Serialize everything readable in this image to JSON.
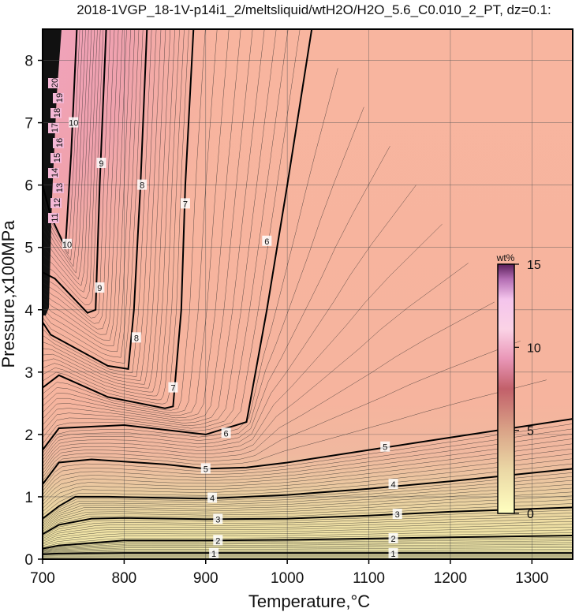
{
  "chart_data": {
    "type": "contour",
    "title": "2018-1VGP_18-1V-p14i1_2/meltsliquid/wtH2O/H2O_5.6_C0.010_2_PT, dz=0.1:",
    "xlabel": "Temperature,°C",
    "ylabel": "Pressure,x100MPa",
    "xlim": [
      700,
      1350
    ],
    "ylim": [
      0,
      8.5
    ],
    "xticks": [
      700,
      800,
      900,
      1000,
      1100,
      1200,
      1300
    ],
    "yticks": [
      0,
      1,
      2,
      3,
      4,
      5,
      6,
      7,
      8
    ],
    "grid": true,
    "colorbar": {
      "unit": "wt%",
      "range": [
        0,
        15
      ],
      "ticks": [
        0,
        5,
        10,
        15
      ],
      "colors": [
        "#ffffc0",
        "#e8c89a",
        "#d89080",
        "#c05050",
        "#f0a0c0",
        "#ffe0f0",
        "#c080c0",
        "#602060"
      ]
    },
    "major_contours": [
      {
        "level": 1,
        "points": [
          [
            700,
            0.08
          ],
          [
            720,
            0.09
          ],
          [
            800,
            0.1
          ],
          [
            900,
            0.1
          ],
          [
            1000,
            0.1
          ],
          [
            1100,
            0.1
          ],
          [
            1200,
            0.1
          ],
          [
            1350,
            0.1
          ]
        ],
        "labels": [
          [
            910,
            0.09
          ],
          [
            1130,
            0.09
          ]
        ]
      },
      {
        "level": 2,
        "points": [
          [
            700,
            0.17
          ],
          [
            720,
            0.22
          ],
          [
            800,
            0.3
          ],
          [
            900,
            0.3
          ],
          [
            1000,
            0.31
          ],
          [
            1100,
            0.33
          ],
          [
            1200,
            0.35
          ],
          [
            1350,
            0.38
          ]
        ],
        "labels": [
          [
            915,
            0.3
          ],
          [
            1130,
            0.33
          ]
        ]
      },
      {
        "level": 3,
        "points": [
          [
            700,
            0.4
          ],
          [
            720,
            0.55
          ],
          [
            760,
            0.65
          ],
          [
            800,
            0.66
          ],
          [
            900,
            0.64
          ],
          [
            1000,
            0.65
          ],
          [
            1100,
            0.7
          ],
          [
            1200,
            0.76
          ],
          [
            1350,
            0.83
          ]
        ],
        "labels": [
          [
            915,
            0.64
          ],
          [
            1135,
            0.72
          ]
        ]
      },
      {
        "level": 4,
        "points": [
          [
            700,
            0.65
          ],
          [
            720,
            0.85
          ],
          [
            740,
            1.0
          ],
          [
            780,
            1.0
          ],
          [
            900,
            0.97
          ],
          [
            1000,
            1.03
          ],
          [
            1100,
            1.13
          ],
          [
            1200,
            1.25
          ],
          [
            1350,
            1.45
          ]
        ],
        "labels": [
          [
            908,
            0.98
          ],
          [
            1130,
            1.2
          ]
        ]
      },
      {
        "level": 5,
        "points": [
          [
            700,
            1.2
          ],
          [
            720,
            1.55
          ],
          [
            760,
            1.6
          ],
          [
            850,
            1.52
          ],
          [
            900,
            1.45
          ],
          [
            950,
            1.47
          ],
          [
            1000,
            1.55
          ],
          [
            1100,
            1.75
          ],
          [
            1200,
            1.95
          ],
          [
            1350,
            2.25
          ]
        ],
        "labels": [
          [
            900,
            1.45
          ],
          [
            1120,
            1.8
          ]
        ]
      },
      {
        "level": 6,
        "points": [
          [
            700,
            1.75
          ],
          [
            720,
            2.1
          ],
          [
            800,
            2.15
          ],
          [
            900,
            2.0
          ],
          [
            950,
            2.2
          ],
          [
            975,
            4.0
          ],
          [
            1000,
            6.0
          ],
          [
            1030,
            8.5
          ]
        ],
        "labels": [
          [
            925,
            2.02
          ],
          [
            975,
            5.1
          ]
        ]
      },
      {
        "level": 7,
        "points": [
          [
            700,
            2.75
          ],
          [
            720,
            2.95
          ],
          [
            780,
            2.6
          ],
          [
            850,
            2.42
          ],
          [
            860,
            2.45
          ],
          [
            870,
            4.0
          ],
          [
            875,
            6.0
          ],
          [
            885,
            8.5
          ]
        ],
        "labels": [
          [
            860,
            2.75
          ],
          [
            875,
            5.7
          ]
        ]
      },
      {
        "level": 8,
        "points": [
          [
            700,
            3.8
          ],
          [
            710,
            3.6
          ],
          [
            780,
            3.1
          ],
          [
            805,
            3.05
          ],
          [
            812,
            4.0
          ],
          [
            820,
            6.0
          ],
          [
            828,
            8.5
          ]
        ],
        "labels": [
          [
            815,
            3.55
          ],
          [
            822,
            6.0
          ]
        ]
      },
      {
        "level": 9,
        "points": [
          [
            700,
            4.6
          ],
          [
            715,
            4.5
          ],
          [
            755,
            3.95
          ],
          [
            765,
            4.0
          ],
          [
            770,
            6.0
          ],
          [
            778,
            8.5
          ]
        ],
        "labels": [
          [
            770,
            4.35
          ],
          [
            772,
            6.35
          ]
        ]
      },
      {
        "level": 10,
        "points": [
          [
            700,
            6.0
          ],
          [
            710,
            5.5
          ],
          [
            728,
            5.0
          ],
          [
            735,
            6.5
          ],
          [
            742,
            8.5
          ]
        ],
        "labels": [
          [
            730,
            5.05
          ],
          [
            738,
            7.0
          ]
        ]
      }
    ],
    "small_labels": [
      "11",
      "12",
      "13",
      "14",
      "15",
      "16",
      "17",
      "18",
      "19",
      "20"
    ]
  }
}
